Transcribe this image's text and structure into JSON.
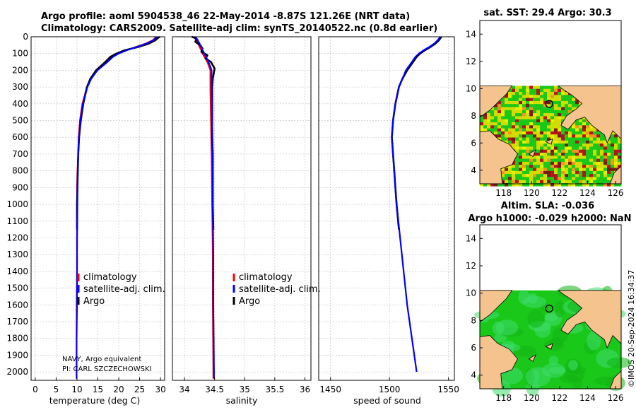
{
  "titles": {
    "line1": "Argo profile: aoml 5904538_46 22-May-2014 -8.87S 121.26E (NRT data)",
    "line2": "Climatology: CARS2009. Satellite-adj clim: synTS_20140522.nc (0.8d earlier)",
    "sst": "sat. SST: 29.4 Argo: 30.3",
    "sla1": "Altim. SLA: -0.036",
    "sla2": "Argo h1000: -0.029 h2000: NaN"
  },
  "timestamp": "©IMOS 20-Sep-2024 16:34:37",
  "float_info": {
    "line1": "NAVY, Argo equivalent",
    "line2": "PI: CARL SZCZECHOWSKI"
  },
  "colors": {
    "climatology": "#ff0000",
    "satellite": "#0000ff",
    "argo": "#000000",
    "land": "#f5c48e",
    "sea_green": "#19c819",
    "anom_yellow": "#d2dc00",
    "anom_red": "#b4141e"
  },
  "chart_data": [
    {
      "type": "line",
      "id": "temperature",
      "xlabel": "temperature (deg C)",
      "ylabel": "",
      "xlim": [
        -1,
        31
      ],
      "ylim": [
        2050,
        0
      ],
      "xticks": [
        "0",
        "5",
        "10",
        "15",
        "20",
        "25",
        "30"
      ],
      "yticks": [
        "0",
        "100",
        "200",
        "300",
        "400",
        "500",
        "600",
        "700",
        "800",
        "900",
        "1000",
        "1100",
        "1200",
        "1300",
        "1400",
        "1500",
        "1600",
        "1700",
        "1800",
        "1900",
        "2000"
      ],
      "legend": [
        "climatology",
        "satellite-adj. clim.",
        "Argo"
      ],
      "series": [
        {
          "name": "climatology",
          "pressure": [
            0,
            20,
            40,
            60,
            80,
            100,
            120,
            150,
            175,
            200,
            250,
            300,
            400,
            500,
            600,
            700,
            800,
            900,
            1000,
            1200,
            1400,
            1600,
            1800,
            2000,
            2040
          ],
          "values": [
            29.0,
            28.2,
            26.5,
            24.2,
            21.8,
            19.8,
            18.5,
            17.2,
            16.0,
            14.8,
            13.3,
            12.4,
            11.3,
            10.7,
            10.4,
            10.3,
            10.1,
            10.0,
            10.0,
            10.0,
            10.0,
            9.9,
            9.9,
            9.9,
            9.9
          ]
        },
        {
          "name": "satellite-adj. clim.",
          "pressure": [
            0,
            20,
            40,
            60,
            80,
            100,
            120,
            150,
            175,
            200,
            250,
            300,
            400,
            500,
            600,
            700,
            800,
            900,
            1000,
            1200,
            1400,
            1600,
            1800,
            2000,
            2040
          ],
          "values": [
            29.2,
            28.4,
            26.7,
            24.4,
            22.0,
            20.0,
            18.6,
            17.3,
            16.1,
            14.9,
            13.4,
            12.5,
            11.4,
            10.8,
            10.5,
            10.3,
            10.2,
            10.1,
            10.1,
            10.0,
            10.0,
            10.0,
            9.9,
            9.9,
            9.9
          ]
        },
        {
          "name": "Argo",
          "pressure": [
            0,
            20,
            40,
            60,
            80,
            100,
            120,
            150,
            175,
            200,
            250,
            300,
            400,
            500,
            600,
            700,
            800,
            900,
            1000,
            1150
          ],
          "values": [
            29.8,
            28.8,
            27.3,
            24.8,
            21.5,
            19.5,
            18.0,
            16.8,
            15.7,
            14.6,
            13.2,
            12.4,
            11.5,
            10.9,
            10.5,
            10.3,
            10.2,
            10.1,
            10.0,
            10.0
          ]
        }
      ]
    },
    {
      "type": "line",
      "id": "salinity",
      "xlabel": "salinity",
      "xlim": [
        33.8,
        36.1
      ],
      "ylim": [
        2050,
        0
      ],
      "xticks": [
        "34",
        "34.5",
        "35",
        "35.5",
        "36"
      ],
      "legend": [
        "climatology",
        "satellite-adj. clim.",
        "Argo"
      ],
      "series": [
        {
          "name": "climatology",
          "pressure": [
            0,
            20,
            40,
            60,
            80,
            100,
            150,
            200,
            300,
            500,
            700,
            1000,
            1300,
            1600,
            2000,
            2040
          ],
          "values": [
            34.15,
            34.2,
            34.23,
            34.25,
            34.28,
            34.3,
            34.38,
            34.43,
            34.43,
            34.44,
            34.45,
            34.46,
            34.47,
            34.47,
            34.48,
            34.48
          ]
        },
        {
          "name": "satellite-adj. clim.",
          "pressure": [
            0,
            20,
            40,
            60,
            80,
            100,
            150,
            200,
            300,
            500,
            700,
            1000,
            1300,
            1600,
            2000,
            2040
          ],
          "values": [
            34.18,
            34.22,
            34.25,
            34.28,
            34.3,
            34.33,
            34.4,
            34.45,
            34.45,
            34.46,
            34.47,
            34.47,
            34.48,
            34.48,
            34.49,
            34.49
          ]
        },
        {
          "name": "Argo",
          "pressure": [
            0,
            10,
            30,
            50,
            70,
            90,
            110,
            130,
            150,
            170,
            190,
            210,
            250,
            300,
            400,
            500,
            600,
            700,
            800,
            900,
            1000,
            1150
          ],
          "values": [
            34.12,
            34.2,
            34.18,
            34.26,
            34.3,
            34.28,
            34.38,
            34.35,
            34.44,
            34.47,
            34.5,
            34.49,
            34.47,
            34.46,
            34.46,
            34.46,
            34.46,
            34.47,
            34.47,
            34.47,
            34.47,
            34.48
          ]
        }
      ]
    },
    {
      "type": "line",
      "id": "sound_speed",
      "xlabel": "speed of sound",
      "xlim": [
        1440,
        1555
      ],
      "ylim": [
        2050,
        0
      ],
      "xticks": [
        "1450",
        "1500",
        "1550"
      ],
      "series": [
        {
          "name": "satellite-adj. clim.",
          "pressure": [
            0,
            20,
            40,
            60,
            80,
            100,
            120,
            150,
            200,
            250,
            300,
            400,
            500,
            600,
            700,
            800,
            900,
            1000,
            1200,
            1400,
            1600,
            1800,
            2000
          ],
          "values": [
            1543,
            1541,
            1538,
            1534,
            1529,
            1525,
            1522,
            1519,
            1514,
            1511,
            1508,
            1505,
            1503,
            1502,
            1503,
            1504,
            1505,
            1506,
            1509,
            1512,
            1515,
            1519,
            1523
          ]
        },
        {
          "name": "Argo",
          "pressure": [
            0,
            20,
            40,
            60,
            80,
            100,
            120,
            150,
            200,
            250,
            300,
            400,
            500,
            600,
            700,
            800,
            900,
            1000,
            1150
          ],
          "values": [
            1544,
            1542,
            1539,
            1535,
            1530,
            1526,
            1523,
            1520,
            1515,
            1511,
            1508,
            1505,
            1503,
            1502,
            1503,
            1504,
            1505,
            1506,
            1508
          ]
        }
      ]
    },
    {
      "type": "heatmap",
      "id": "sst_map",
      "title": "sat. SST: 29.4 Argo: 30.3",
      "xlim": [
        116.3,
        126.4
      ],
      "ylim": [
        3,
        15
      ],
      "xticks": [
        "118",
        "120",
        "122",
        "124",
        "126"
      ],
      "yticks": [
        "4",
        "6",
        "8",
        "10",
        "12",
        "14"
      ],
      "data_extent_lat": [
        3,
        10.2
      ],
      "argo_position": {
        "lon": 121.26,
        "lat": 8.87
      }
    },
    {
      "type": "heatmap",
      "id": "sla_map",
      "title": "Altim. SLA: -0.036",
      "xlim": [
        116.3,
        126.4
      ],
      "ylim": [
        3,
        15
      ],
      "xticks": [
        "118",
        "120",
        "122",
        "124",
        "126"
      ],
      "yticks": [
        "4",
        "6",
        "8",
        "10",
        "12",
        "14"
      ],
      "data_extent_lat": [
        3,
        10.2
      ],
      "argo_position": {
        "lon": 121.26,
        "lat": 8.87
      }
    }
  ]
}
